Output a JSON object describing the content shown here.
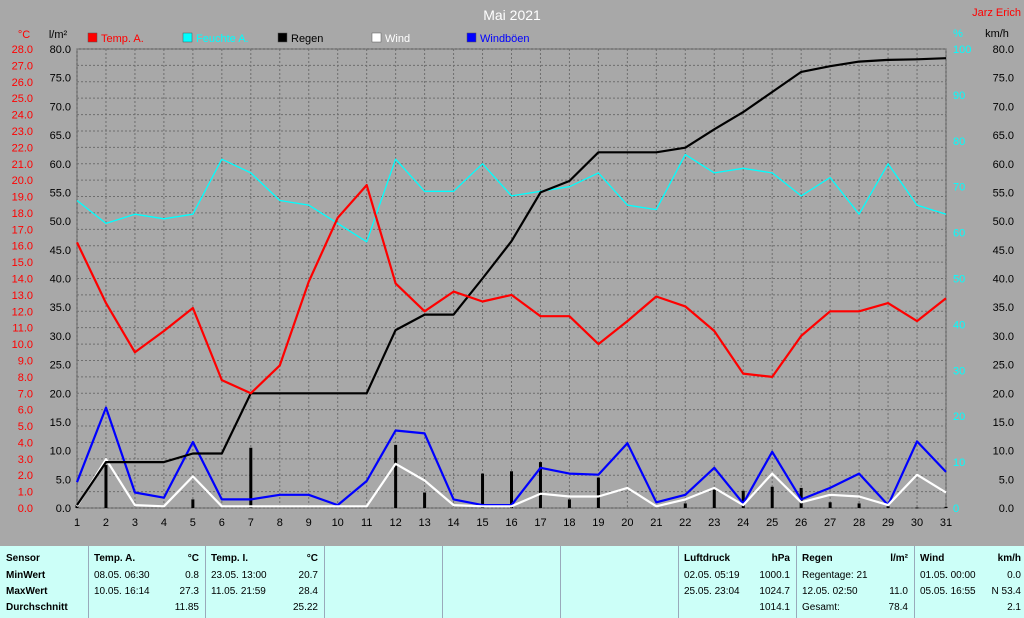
{
  "title": "Mai 2021",
  "author": "Jarz Erich",
  "units": {
    "temp": "°C",
    "rain": "l/m²",
    "humidity": "%",
    "wind": "km/h"
  },
  "legend": [
    {
      "label": "Temp. A.",
      "color": "#ff0000"
    },
    {
      "label": "Feuchte A.",
      "color": "#00ffff"
    },
    {
      "label": "Regen",
      "color": "#000000"
    },
    {
      "label": "Wind",
      "color": "#ffffff"
    },
    {
      "label": "Windböen",
      "color": "#0000ff"
    }
  ],
  "chart_data": {
    "type": "line",
    "title": "Mai 2021",
    "x": [
      1,
      2,
      3,
      4,
      5,
      6,
      7,
      8,
      9,
      10,
      11,
      12,
      13,
      14,
      15,
      16,
      17,
      18,
      19,
      20,
      21,
      22,
      23,
      24,
      25,
      26,
      27,
      28,
      29,
      30,
      31
    ],
    "axes": {
      "temp": {
        "min": 0.0,
        "max": 28.0,
        "step": 1.0
      },
      "rain": {
        "min": 0.0,
        "max": 80.0,
        "step": 5.0
      },
      "humidity": {
        "min": 0,
        "max": 100,
        "step": 10
      },
      "wind": {
        "min": 0.0,
        "max": 80.0,
        "step": 5.0
      }
    },
    "series": [
      {
        "name": "Temp. A.",
        "axis": "temp",
        "color": "#ff0000",
        "values": [
          16.2,
          12.5,
          9.5,
          10.8,
          12.2,
          7.8,
          7.0,
          8.7,
          13.8,
          17.7,
          19.7,
          13.7,
          12.0,
          13.2,
          12.6,
          13.0,
          11.7,
          11.7,
          10.0,
          11.4,
          12.9,
          12.3,
          10.8,
          8.2,
          8.0,
          10.5,
          12.0,
          12.0,
          12.5,
          11.4,
          12.8
        ]
      },
      {
        "name": "Feuchte A.",
        "axis": "humidity",
        "color": "#00ffff",
        "values": [
          67,
          62,
          64,
          63,
          64,
          76,
          73,
          67,
          66,
          62,
          58,
          76,
          69,
          69,
          75,
          68,
          69,
          70,
          73,
          66,
          65,
          77,
          73,
          74,
          73,
          68,
          72,
          64,
          75,
          66,
          64
        ]
      },
      {
        "name": "Regen",
        "axis": "rain",
        "color": "#000000",
        "values": [
          0.5,
          8.0,
          8.0,
          8.0,
          9.5,
          9.5,
          20.0,
          20.0,
          20.0,
          20.0,
          20.0,
          31.0,
          33.7,
          33.7,
          40.0,
          46.5,
          55.0,
          57.0,
          62.0,
          62.0,
          62.0,
          62.8,
          66.0,
          69.0,
          72.5,
          76.0,
          77.0,
          77.8,
          78.1,
          78.2,
          78.4
        ]
      },
      {
        "name": "Wind",
        "axis": "wind",
        "color": "#ffffff",
        "values": [
          0.3,
          8.5,
          0.5,
          0.3,
          5.5,
          0.3,
          0.3,
          0.3,
          0.3,
          0.3,
          0.3,
          7.7,
          4.8,
          0.5,
          0.3,
          0.3,
          2.5,
          2.0,
          2.0,
          3.5,
          0.3,
          1.5,
          3.5,
          0.5,
          6.0,
          1.0,
          2.3,
          2.0,
          0.5,
          5.8,
          2.7
        ]
      },
      {
        "name": "Windböen",
        "axis": "wind",
        "color": "#0000ff",
        "values": [
          4.5,
          17.5,
          2.7,
          1.8,
          11.5,
          1.5,
          1.5,
          2.3,
          2.3,
          0.5,
          4.7,
          13.5,
          13.0,
          1.5,
          0.5,
          0.5,
          7.0,
          6.0,
          5.8,
          11.3,
          1.0,
          2.3,
          7.0,
          0.8,
          9.8,
          1.5,
          3.5,
          6.0,
          0.5,
          11.6,
          6.3
        ]
      }
    ],
    "bars": {
      "name": "Regen (Tag)",
      "axis": "rain",
      "color": "#000000",
      "values": [
        0.5,
        7.5,
        0,
        0,
        1.5,
        0,
        10.5,
        0,
        0,
        0,
        0,
        11.0,
        2.7,
        0,
        6.0,
        6.4,
        8.0,
        1.5,
        5.3,
        0,
        0,
        0.8,
        3.2,
        3.0,
        3.7,
        3.5,
        1.0,
        0.8,
        0.3,
        0.1,
        0.2
      ]
    }
  },
  "table": {
    "headers": [
      "Sensor",
      "Temp. A.",
      "°C",
      "Temp. I.",
      "°C",
      "Luftdruck",
      "hPa",
      "Regen",
      "l/m²",
      "Wind",
      "km/h"
    ],
    "rows": [
      {
        "label": "MinWert",
        "tempA_time": "08.05.  06:30",
        "tempA_val": "0.8",
        "tempI_time": "23.05.  13:00",
        "tempI_val": "20.7",
        "press_time": "02.05.  05:19",
        "press_val": "1000.1",
        "rain_text": "Regentage: 21",
        "rain_val": "",
        "wind_time": "01.05.  00:00",
        "wind_val": "0.0"
      },
      {
        "label": "MaxWert",
        "tempA_time": "10.05.  16:14",
        "tempA_val": "27.3",
        "tempI_time": "11.05.  21:59",
        "tempI_val": "28.4",
        "press_time": "25.05.  23:04",
        "press_val": "1024.7",
        "rain_text": "12.05.  02:50",
        "rain_val": "11.0",
        "wind_time": "05.05.  16:55",
        "wind_val": "N 53.4"
      },
      {
        "label": "Durchschnitt",
        "tempA_time": "",
        "tempA_val": "11.85",
        "tempI_time": "",
        "tempI_val": "25.22",
        "press_time": "",
        "press_val": "1014.1",
        "rain_text": "Gesamt:",
        "rain_val": "78.4",
        "wind_time": "",
        "wind_val": "2.1"
      }
    ]
  }
}
